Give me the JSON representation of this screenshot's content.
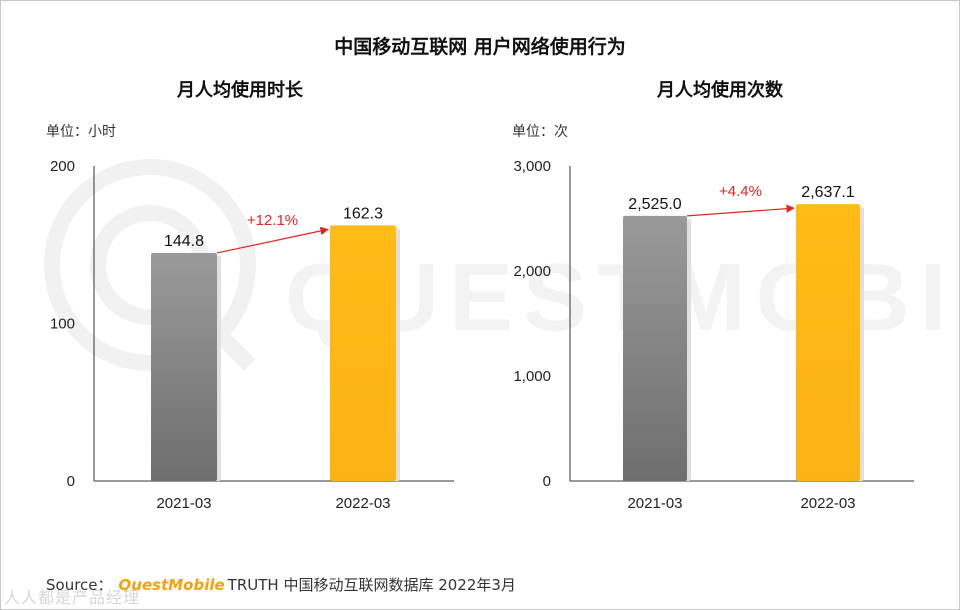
{
  "title": "中国移动互联网 用户网络使用行为",
  "watermark_text": "QUESTMOBILE",
  "corner_watermark": "人人都是产品经理",
  "source": {
    "prefix": "Source：",
    "brand": "QuestMobile",
    "suffix": "TRUTH 中国移动互联网数据库 2022年3月"
  },
  "colors": {
    "bar_2021": "#8c8c8c",
    "bar_2022": "#ffb915",
    "arrow": "#e52323",
    "growth_text": "#e52323"
  },
  "chart_data": [
    {
      "type": "bar",
      "title": "月人均使用时长",
      "unit": "单位：小时",
      "categories": [
        "2021-03",
        "2022-03"
      ],
      "values": [
        144.8,
        162.3
      ],
      "value_labels": [
        "144.8",
        "162.3"
      ],
      "ylim": [
        0,
        200
      ],
      "yticks": [
        0,
        100,
        200
      ],
      "ytick_labels": [
        "0",
        "100",
        "200"
      ],
      "growth_label": "+12.1%",
      "grid": false
    },
    {
      "type": "bar",
      "title": "月人均使用次数",
      "unit": "单位：次",
      "categories": [
        "2021-03",
        "2022-03"
      ],
      "values": [
        2525.0,
        2637.1
      ],
      "value_labels": [
        "2,525.0",
        "2,637.1"
      ],
      "ylim": [
        0,
        3000
      ],
      "yticks": [
        0,
        1000,
        2000,
        3000
      ],
      "ytick_labels": [
        "0",
        "1,000",
        "2,000",
        "3,000"
      ],
      "growth_label": "+4.4%",
      "grid": false
    }
  ]
}
